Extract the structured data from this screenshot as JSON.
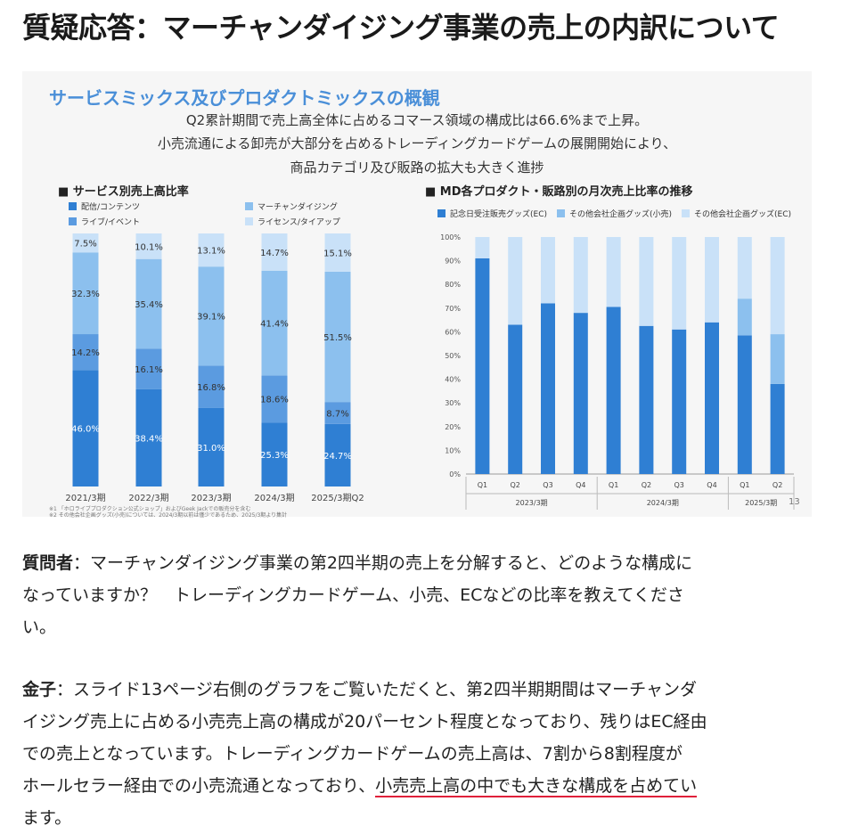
{
  "heading": "質疑応答：マーチャンダイジング事業の売上の内訳について",
  "slide": {
    "title": "サービスミックス及びプロダクトミックスの概観",
    "sub1": "Q2累計期間で売上高全体に占めるコマース領域の構成比は66.6%まで上昇。",
    "sub2": "小売流通による卸売が大部分を占めるトレーディングカードゲームの展開開始により、",
    "sub3": "商品カテゴリ及び販路の拡大も大きく進捗",
    "page_number": "13",
    "note1": "※1 「ホロライブプロダクション公式ショップ」およびGeek Jackでの販売分を含む",
    "note2": "※2 その他会社企画グッズ(小売)については、2024/3期以前は僅少であるため、2025/3期より集計",
    "left": {
      "caption": "■ サービス別売上高比率",
      "legend": [
        "配信/コンテンツ",
        "マーチャンダイジング",
        "ライブ/イベント",
        "ライセンス/タイアップ"
      ],
      "colors": [
        "#2f7fd3",
        "#8cc0ee",
        "#5b9be0",
        "#c9e1f8"
      ]
    },
    "right": {
      "caption": "■ MD各プロダクト・販路別の月次売上比率の推移",
      "legend": [
        "記念日受注販売グッズ(EC)",
        "その他会社企画グッズ(小売)",
        "その他会社企画グッズ(EC)"
      ],
      "colors": [
        "#2f7fd3",
        "#8cc0ee",
        "#c9e1f8"
      ]
    }
  },
  "chart_data": [
    {
      "type": "bar",
      "stacked": true,
      "title": "サービス別売上高比率",
      "categories": [
        "2021/3期",
        "2022/3期",
        "2023/3期",
        "2024/3期",
        "2025/3期Q2"
      ],
      "series": [
        {
          "name": "配信/コンテンツ",
          "values": [
            46.0,
            38.4,
            31.0,
            25.3,
            24.7
          ],
          "labels": [
            "46.0%",
            "38.4%",
            "31.0%",
            "25.3%",
            "24.7%"
          ]
        },
        {
          "name": "ライブ/イベント",
          "values": [
            14.2,
            16.1,
            16.8,
            18.6,
            8.7
          ],
          "labels": [
            "14.2%",
            "16.1%",
            "16.8%",
            "18.6%",
            "8.7%"
          ]
        },
        {
          "name": "マーチャンダイジング",
          "values": [
            32.3,
            35.4,
            39.1,
            41.4,
            51.5
          ],
          "labels": [
            "32.3%",
            "35.4%",
            "39.1%",
            "41.4%",
            "51.5%"
          ]
        },
        {
          "name": "ライセンス/タイアップ",
          "values": [
            7.5,
            10.1,
            13.1,
            14.7,
            15.1
          ],
          "labels": [
            "7.5%",
            "10.1%",
            "13.1%",
            "14.7%",
            "15.1%"
          ]
        }
      ],
      "ylim": [
        0,
        100
      ]
    },
    {
      "type": "bar",
      "stacked": true,
      "title": "MD各プロダクト・販路別の月次売上比率の推移",
      "categories": [
        "Q1",
        "Q2",
        "Q3",
        "Q4",
        "Q1",
        "Q2",
        "Q3",
        "Q4",
        "Q1",
        "Q2"
      ],
      "groups": [
        "2023/3期",
        "2024/3期",
        "2025/3期"
      ],
      "group_spans": [
        4,
        4,
        2
      ],
      "yticks": [
        "0%",
        "10%",
        "20%",
        "30%",
        "40%",
        "50%",
        "60%",
        "70%",
        "80%",
        "90%",
        "100%"
      ],
      "series": [
        {
          "name": "記念日受注販売グッズ(EC)",
          "values": [
            91,
            63,
            72,
            68,
            70.5,
            62.5,
            61,
            64,
            58.5,
            38
          ]
        },
        {
          "name": "その他会社企画グッズ(小売)",
          "values": [
            0,
            0,
            0,
            0,
            0,
            0,
            0,
            0,
            15.5,
            21
          ]
        },
        {
          "name": "その他会社企画グッズ(EC)",
          "values": [
            9,
            37,
            28,
            32,
            29.5,
            37.5,
            39,
            36,
            26,
            41
          ]
        }
      ],
      "ylim": [
        0,
        100
      ]
    }
  ],
  "qa": {
    "q_speaker": "質問者",
    "q_line1": "：マーチャンダイジング事業の第2四半期の売上を分解すると、どのような構成に",
    "q_line2": "なっていますか？　トレーディングカードゲーム、小売、ECなどの比率を教えてくださ",
    "q_line3": "い。",
    "a_speaker": "金子",
    "a_line1": "：スライド13ページ右側のグラフをご覧いただくと、第2四半期期間はマーチャンダ",
    "a_line2": "イジング売上に占める小売売上高の構成が20パーセント程度となっており、残りはEC経由",
    "a_line3": "での売上となっています。トレーディングカードゲームの売上高は、7割から8割程度が",
    "a_line4a": "ホールセラー経由での小売流通となっており、",
    "a_line4b": "小売売上高の中でも大きな構成を占めてい",
    "a_line5": "ます。"
  }
}
